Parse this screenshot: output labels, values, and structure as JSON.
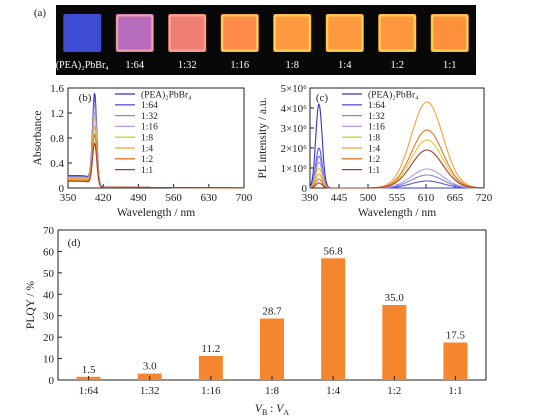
{
  "chart_data": [
    {
      "panel": "(a)",
      "type": "table",
      "samples": [
        {
          "label": "(PEA)₂PbBr₄",
          "color": "#3f4bd3"
        },
        {
          "label": "1:64",
          "color": "#b66bbd"
        },
        {
          "label": "1:32",
          "color": "#f07f73"
        },
        {
          "label": "1:16",
          "color": "#ff8c4a"
        },
        {
          "label": "1:8",
          "color": "#ff9a40"
        },
        {
          "label": "1:4",
          "color": "#ff9a40"
        },
        {
          "label": "1:2",
          "color": "#ff973f"
        },
        {
          "label": "1:1",
          "color": "#ff913c"
        }
      ]
    },
    {
      "panel": "(b)",
      "type": "line",
      "xlabel": "Wavelength / nm",
      "ylabel": "Absorbance",
      "xlim": [
        350,
        700
      ],
      "ylim": [
        0,
        1.6
      ],
      "xticks": [
        350,
        420,
        490,
        560,
        630,
        700
      ],
      "yticks": [
        0.0,
        0.4,
        0.8,
        1.2,
        1.6
      ],
      "ytick_labels": [
        "0",
        "0.4",
        "0.8",
        "1.2",
        "1.6"
      ],
      "peak_wavelength": 403,
      "series": [
        {
          "name": "(PEA)₂PbBr₄",
          "color": "#3434c8",
          "peak": 1.47,
          "baseline": 0.18
        },
        {
          "name": "1:64",
          "color": "#5a5ad8",
          "peak": 1.4,
          "baseline": 0.17
        },
        {
          "name": "1:32",
          "color": "#8a84e0",
          "peak": 1.3,
          "baseline": 0.16
        },
        {
          "name": "1:16",
          "color": "#b49ae6",
          "peak": 1.18,
          "baseline": 0.15
        },
        {
          "name": "1:8",
          "color": "#d9cc3a",
          "peak": 1.08,
          "baseline": 0.14
        },
        {
          "name": "1:4",
          "color": "#f0a23a",
          "peak": 0.95,
          "baseline": 0.13
        },
        {
          "name": "1:2",
          "color": "#e07a2a",
          "peak": 0.82,
          "baseline": 0.11
        },
        {
          "name": "1:1",
          "color": "#a0402a",
          "peak": 0.68,
          "baseline": 0.09
        }
      ]
    },
    {
      "panel": "(c)",
      "type": "line",
      "xlabel": "Wavelength / nm",
      "ylabel": "PL intensity / a.u.",
      "xlim": [
        390,
        720
      ],
      "ylim": [
        0,
        5000000
      ],
      "xticks": [
        390,
        445,
        500,
        555,
        610,
        665,
        720
      ],
      "yticks": [
        0,
        1000000,
        2000000,
        3000000,
        4000000,
        5000000
      ],
      "ytick_labels": [
        "0",
        "1×10⁶",
        "2×10⁶",
        "3×10⁶",
        "4×10⁶",
        "5×10⁶"
      ],
      "series": [
        {
          "name": "(PEA)₂PbBr₄",
          "color": "#3434c8",
          "blue_peak": 4200000,
          "orange_peak": 0
        },
        {
          "name": "1:64",
          "color": "#5a5ad8",
          "blue_peak": 2000000,
          "orange_peak": 350000
        },
        {
          "name": "1:32",
          "color": "#8a84e0",
          "blue_peak": 1600000,
          "orange_peak": 650000
        },
        {
          "name": "1:16",
          "color": "#b49ae6",
          "blue_peak": 1300000,
          "orange_peak": 950000
        },
        {
          "name": "1:8",
          "color": "#d9cc3a",
          "blue_peak": 1000000,
          "orange_peak": 2400000
        },
        {
          "name": "1:4",
          "color": "#f0a23a",
          "blue_peak": 700000,
          "orange_peak": 4300000
        },
        {
          "name": "1:2",
          "color": "#e07a2a",
          "blue_peak": 450000,
          "orange_peak": 2900000
        },
        {
          "name": "1:1",
          "color": "#a0402a",
          "blue_peak": 250000,
          "orange_peak": 1900000
        }
      ]
    },
    {
      "panel": "(d)",
      "type": "bar",
      "xlabel_v": "V",
      "xlabel_b": "B",
      "xlabel_sep": " : ",
      "xlabel_a": "A",
      "ylabel": "PLQY / %",
      "ylim": [
        0,
        70
      ],
      "yticks": [
        0,
        10,
        20,
        30,
        40,
        50,
        60,
        70
      ],
      "categories": [
        "1:64",
        "1:32",
        "1:16",
        "1:8",
        "1:4",
        "1:2",
        "1:1"
      ],
      "values": [
        1.5,
        3.0,
        11.2,
        28.7,
        56.8,
        35.0,
        17.5
      ],
      "value_labels": [
        "1.5",
        "3.0",
        "11.2",
        "28.7",
        "56.8",
        "35.0",
        "17.5"
      ],
      "bar_color": "#f5862e"
    }
  ]
}
